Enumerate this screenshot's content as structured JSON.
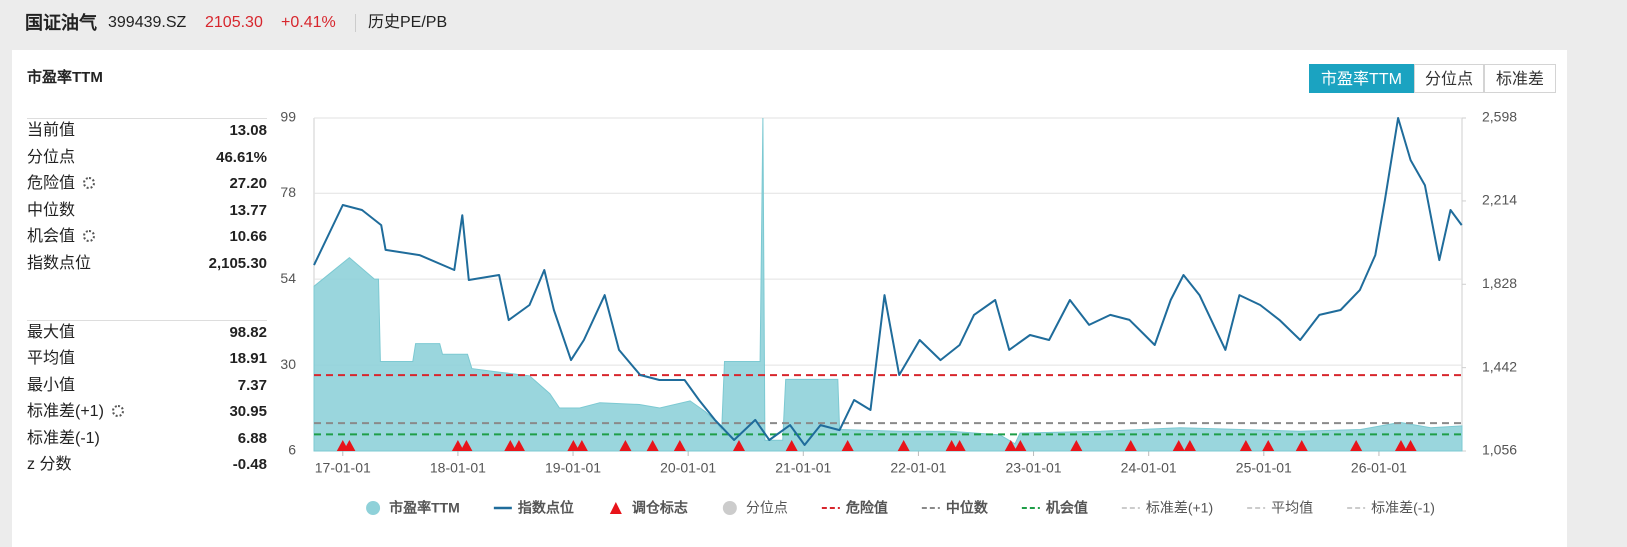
{
  "header": {
    "title": "国证油气",
    "code": "399439.SZ",
    "price": "2105.30",
    "change": "+0.41%",
    "link": "历史PE/PB"
  },
  "panel": {
    "title": "市盈率TTM",
    "tabs": [
      {
        "label": "市盈率TTM",
        "active": true
      },
      {
        "label": "分位点",
        "active": false
      },
      {
        "label": "标准差",
        "active": false
      }
    ]
  },
  "stats": {
    "current": [
      {
        "label": "当前值",
        "value": "13.08",
        "gear": false
      },
      {
        "label": "分位点",
        "value": "46.61%",
        "gear": false
      },
      {
        "label": "危险值",
        "value": "27.20",
        "gear": true
      },
      {
        "label": "中位数",
        "value": "13.77",
        "gear": false
      },
      {
        "label": "机会值",
        "value": "10.66",
        "gear": true
      },
      {
        "label": "指数点位",
        "value": "2,105.30",
        "gear": false
      }
    ],
    "summary": [
      {
        "label": "最大值",
        "value": "98.82",
        "gear": false
      },
      {
        "label": "平均值",
        "value": "18.91",
        "gear": false
      },
      {
        "label": "最小值",
        "value": "7.37",
        "gear": false
      },
      {
        "label": "标准差(+1)",
        "value": "30.95",
        "gear": true
      },
      {
        "label": "标准差(-1)",
        "value": "6.88",
        "gear": false
      },
      {
        "label": "z 分数",
        "value": "-0.48",
        "gear": false
      }
    ]
  },
  "chart_data": {
    "type": "line",
    "xlim": [
      "16-10-01",
      "26-09-21"
    ],
    "xticks": [
      "17-01-01",
      "18-01-01",
      "19-01-01",
      "20-01-01",
      "21-01-01",
      "22-01-01",
      "23-01-01",
      "24-01-01",
      "25-01-01",
      "26-01-01"
    ],
    "ylim": [
      6,
      99
    ],
    "yticks": [
      6,
      30,
      54,
      78,
      99
    ],
    "y2lim": [
      1056,
      2598
    ],
    "y2ticks": [
      {
        "value": 1056,
        "label": "1,056"
      },
      {
        "value": 1442,
        "label": "1,442"
      },
      {
        "value": 1828,
        "label": "1,828"
      },
      {
        "value": 2214,
        "label": "2,214"
      },
      {
        "value": 2598,
        "label": "2,598"
      }
    ],
    "grid": true,
    "series": [
      {
        "name": "市盈率TTM",
        "kind": "area",
        "color": "#8fd1d9",
        "axis": "y",
        "x": [
          "16-10-01",
          "17-01-22",
          "17-04-10",
          "17-04-23",
          "17-04-29",
          "17-08-10",
          "17-08-19",
          "17-11-04",
          "17-11-13",
          "18-02-01",
          "18-02-15",
          "18-05-12",
          "18-08-15",
          "18-10-19",
          "18-11-19",
          "19-01-22",
          "19-03-25",
          "19-07-29",
          "19-10-02",
          "20-01-07",
          "20-02-25",
          "20-03-25",
          "20-04-16",
          "20-04-25",
          "20-08-16",
          "20-08-25",
          "20-09-01",
          "20-10-27",
          "20-11-06",
          "21-04-19",
          "21-04-25",
          "21-11-03",
          "22-04-10",
          "22-09-16",
          "22-11-03",
          "22-11-19",
          "23-08-01",
          "24-04-10",
          "25-04-25",
          "25-11-04",
          "26-03-07",
          "26-06-13",
          "26-09-21"
        ],
        "values": [
          52,
          60,
          54,
          54,
          31,
          31,
          36,
          36,
          33,
          33,
          29,
          28,
          27,
          22,
          18,
          18,
          19.5,
          19,
          18,
          20,
          17,
          14.5,
          12,
          31,
          31,
          99,
          9,
          9,
          26,
          26,
          12,
          11.5,
          11.5,
          10.5,
          8,
          11,
          11.5,
          12.5,
          11.5,
          12,
          14,
          12.5,
          13
        ]
      },
      {
        "name": "指数点位",
        "kind": "line",
        "color": "#1f6c9b",
        "axis": "y2",
        "x": [
          "16-10-01",
          "17-01-01",
          "17-03-01",
          "17-05-01",
          "17-05-15",
          "17-09-01",
          "17-12-20",
          "18-01-15",
          "18-02-05",
          "18-05-10",
          "18-06-10",
          "18-08-15",
          "18-10-01",
          "18-11-01",
          "18-12-25",
          "19-02-05",
          "19-04-10",
          "19-05-25",
          "19-08-01",
          "19-10-01",
          "19-12-20",
          "20-02-05",
          "20-03-25",
          "20-05-25",
          "20-08-01",
          "20-09-15",
          "20-11-20",
          "21-01-05",
          "21-02-25",
          "21-04-25",
          "21-06-10",
          "21-08-01",
          "21-09-15",
          "21-11-01",
          "22-01-05",
          "22-03-10",
          "22-05-10",
          "22-06-25",
          "22-09-01",
          "22-10-15",
          "22-12-20",
          "23-02-20",
          "23-04-25",
          "23-06-25",
          "23-09-01",
          "23-11-01",
          "24-01-20",
          "24-03-10",
          "24-04-20",
          "24-06-10",
          "24-09-01",
          "24-10-15",
          "24-12-20",
          "25-02-20",
          "25-04-25",
          "25-06-25",
          "25-09-01",
          "25-11-01",
          "25-12-20",
          "26-01-20",
          "26-03-01",
          "26-04-10",
          "26-05-25",
          "26-07-10",
          "26-08-15",
          "26-09-20"
        ],
        "values": [
          1917,
          2195,
          2172,
          2102,
          1987,
          1963,
          1894,
          2148,
          1848,
          1871,
          1662,
          1732,
          1894,
          1709,
          1477,
          1570,
          1778,
          1524,
          1408,
          1385,
          1385,
          1292,
          1200,
          1107,
          1200,
          1107,
          1176,
          1084,
          1176,
          1153,
          1292,
          1246,
          1778,
          1408,
          1570,
          1477,
          1547,
          1686,
          1755,
          1524,
          1593,
          1570,
          1755,
          1640,
          1686,
          1663,
          1547,
          1755,
          1871,
          1778,
          1524,
          1778,
          1732,
          1663,
          1570,
          1686,
          1709,
          1801,
          1963,
          2218,
          2598,
          2403,
          2287,
          1940,
          2172,
          2102
        ]
      },
      {
        "name": "调仓标志",
        "kind": "marker",
        "color": "#e8141a",
        "x": [
          "17-01-01",
          "17-01-22",
          "18-01-01",
          "18-01-28",
          "18-06-15",
          "18-07-12",
          "19-01-02",
          "19-01-29",
          "19-06-15",
          "19-09-10",
          "19-12-05",
          "20-06-10",
          "20-11-25",
          "21-05-20",
          "21-11-15",
          "22-04-15",
          "22-05-10",
          "22-10-20",
          "22-11-20",
          "23-05-15",
          "23-11-05",
          "24-04-05",
          "24-05-10",
          "24-11-05",
          "25-01-15",
          "25-04-30",
          "25-10-20",
          "26-03-10",
          "26-04-10"
        ]
      },
      {
        "name": "分位点",
        "kind": "dot",
        "color": "#cccccc",
        "shown": false
      },
      {
        "name": "危险值",
        "kind": "hline",
        "color": "#d7262d",
        "value": 27.2
      },
      {
        "name": "中位数",
        "kind": "hline",
        "color": "#8a8a8a",
        "value": 13.77
      },
      {
        "name": "机会值",
        "kind": "hline",
        "color": "#1f9e48",
        "value": 10.66
      },
      {
        "name": "标准差(+1)",
        "kind": "hline",
        "color": "#cccccc",
        "shown": false
      },
      {
        "name": "平均值",
        "kind": "hline",
        "color": "#cccccc",
        "shown": false
      },
      {
        "name": "标准差(-1)",
        "kind": "hline",
        "color": "#cccccc",
        "shown": false
      }
    ]
  }
}
